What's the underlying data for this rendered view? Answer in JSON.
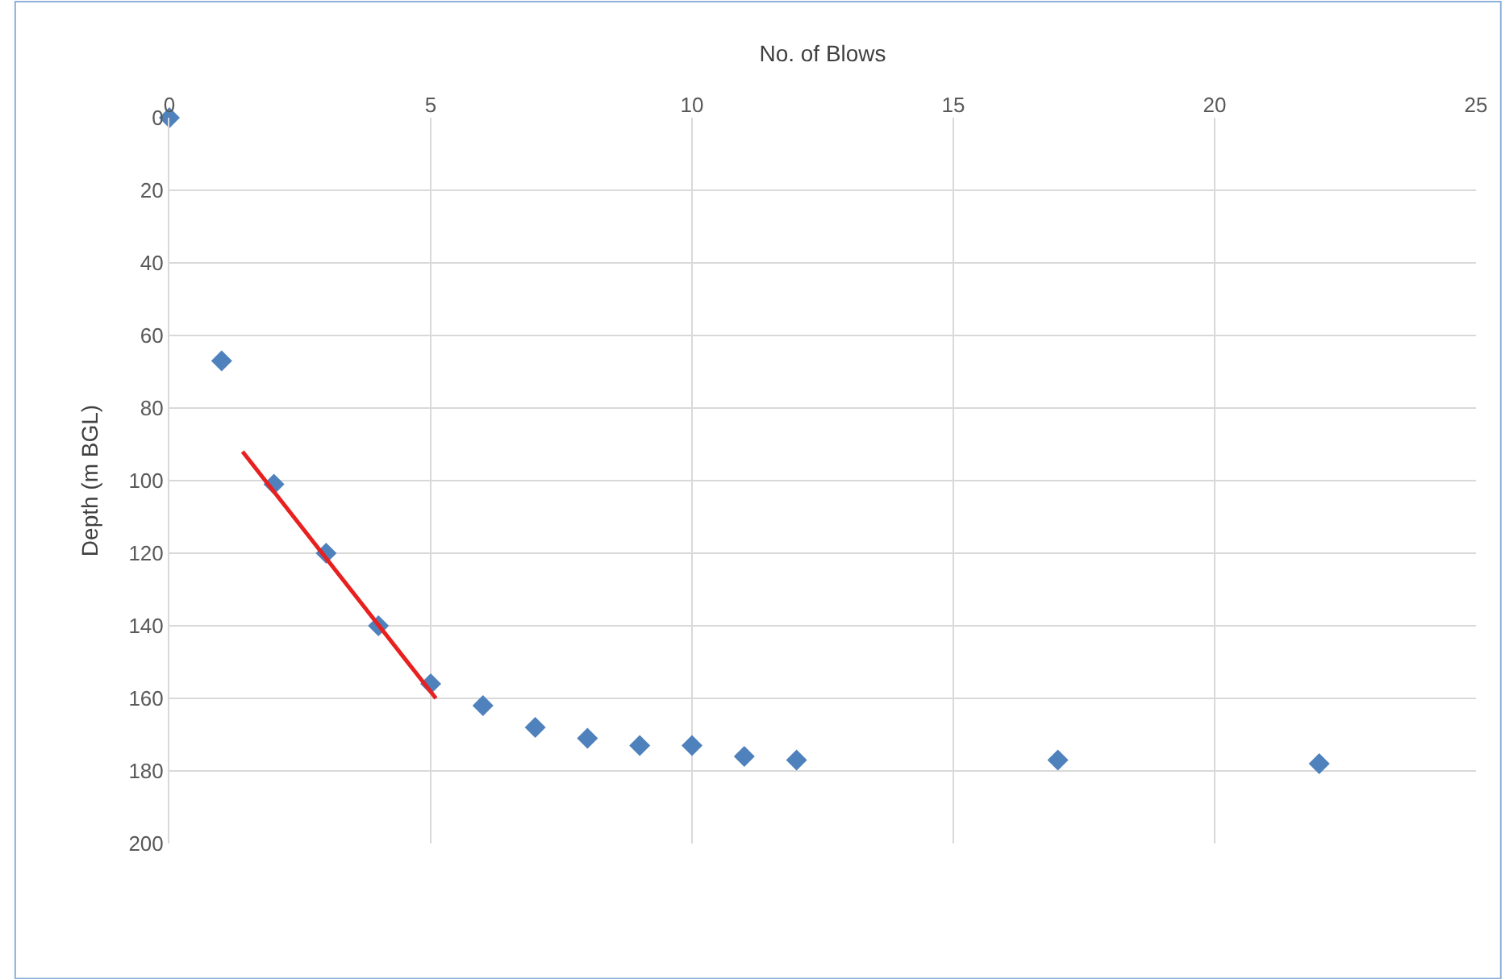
{
  "chart_data": {
    "type": "scatter",
    "xlabel": "No. of Blows",
    "ylabel": "Depth (m BGL)",
    "xlim": [
      0,
      25
    ],
    "xticks": [
      0,
      5,
      10,
      15,
      20,
      25
    ],
    "ylim": [
      200,
      0
    ],
    "yticks": [
      0,
      20,
      40,
      60,
      80,
      100,
      120,
      140,
      160,
      180,
      200
    ],
    "grid": true,
    "series": [
      {
        "marker": "diamond",
        "color": "#4f81bd",
        "x": [
          0,
          1,
          2,
          3,
          4,
          5,
          6,
          7,
          8,
          9,
          10,
          11,
          12,
          17,
          22
        ],
        "values": [
          0,
          67,
          101,
          120,
          140,
          156,
          162,
          168,
          171,
          173,
          173,
          176,
          177,
          177,
          178
        ]
      },
      {
        "type": "line",
        "marker": "none",
        "color": "#e8201f",
        "x": [
          1.4,
          5.1
        ],
        "values": [
          92,
          160
        ]
      }
    ]
  }
}
